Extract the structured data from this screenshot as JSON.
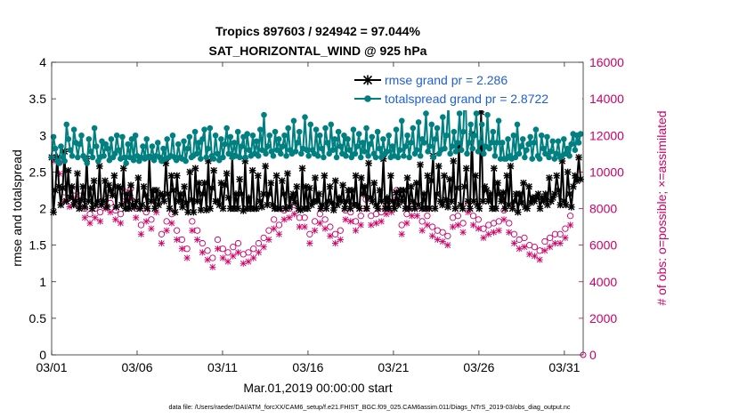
{
  "chart_data": {
    "type": "line",
    "title": "Tropics 897603 / 924942 = 97.044%",
    "subtitle": "SAT_HORIZONTAL_WIND @ 925 hPa",
    "xlabel": "Mar.01,2019 00:00:00 start",
    "ylabel": "rmse and totalspread",
    "y2label": "# of obs: o=possible; ×=assimilated",
    "footnote": "data file: /Users/raeder/DAI/ATM_forcXX/CAM6_setup/f.e21.FHIST_BGC.f09_025.CAM6assim.011/Diags_NTrS_2019-03/obs_diag_output.nc",
    "xlim": [
      0,
      31.1
    ],
    "ylim": [
      0,
      4
    ],
    "y2lim": [
      0,
      16000
    ],
    "x_ticks": [
      0,
      5,
      10,
      15,
      20,
      25,
      30
    ],
    "x_tick_labels": [
      "03/01",
      "03/06",
      "03/11",
      "03/16",
      "03/21",
      "03/26",
      "03/31"
    ],
    "y_ticks": [
      "0",
      "0.5",
      "1",
      "1.5",
      "2",
      "2.5",
      "3",
      "3.5",
      "4"
    ],
    "y2_ticks": [
      "0",
      "2000",
      "4000",
      "6000",
      "8000",
      "10000",
      "12000",
      "14000",
      "16000"
    ],
    "legend_location": "top-right",
    "series": [
      {
        "name": "rmse grand pr = 2.286",
        "color": "#000000",
        "marker": "asterisk",
        "axis": "left",
        "values": [
          2.7,
          1.95,
          2.25,
          2.7,
          2.3,
          2.05,
          2.28,
          2.78,
          2.1,
          2.52,
          2.15,
          2.3,
          2.05,
          2.1,
          2.48,
          2.0,
          2.12,
          2.3,
          2.02,
          2.68,
          2.1,
          2.28,
          2.0,
          2.38,
          2.05,
          2.1,
          2.58,
          2.05,
          2.1,
          2.38,
          2.02,
          2.32,
          2.25,
          2.18,
          2.45,
          2.02,
          2.3,
          2.28,
          2.05,
          2.55,
          2.0,
          2.2,
          2.0,
          2.32,
          2.05,
          2.02,
          2.1,
          2.42,
          2.0,
          2.05,
          2.3,
          2.18,
          2.0,
          2.7,
          2.1,
          2.25,
          2.0,
          2.25,
          2.05,
          2.2,
          2.18,
          2.1,
          2.62,
          2.2,
          2.0,
          2.45,
          2.25,
          1.95,
          2.45,
          2.1,
          2.2,
          2.02,
          2.3,
          2.08,
          1.95,
          2.5,
          2.12,
          1.95,
          2.55,
          2.1,
          2.35,
          1.98,
          2.2,
          2.35,
          1.98,
          2.65,
          2.0,
          2.28,
          2.52,
          2.1,
          2.1,
          2.05,
          2.35,
          2.0,
          2.32,
          2.48,
          2.15,
          2.0,
          2.72,
          2.0,
          2.2,
          2.0,
          2.4,
          2.2,
          1.97,
          2.65,
          2.0,
          2.15,
          2.0,
          2.52,
          2.0,
          2.0,
          2.45,
          2.1,
          2.02,
          2.2,
          2.58,
          2.05,
          2.2,
          2.35,
          2.05,
          2.0,
          2.45,
          2.0,
          2.0,
          2.38,
          2.2,
          2.0,
          2.48,
          2.02,
          2.15,
          2.2,
          2.08,
          2.3,
          2.0,
          1.98,
          2.55,
          2.0,
          2.3,
          2.0,
          2.28,
          2.05,
          2.1,
          2.42,
          2.1,
          2.2,
          2.0,
          2.05,
          2.45,
          2.0,
          2.1,
          2.3,
          2.08,
          1.98,
          2.38,
          2.05,
          2.15,
          2.1,
          2.32,
          2.0,
          2.1,
          2.25,
          2.0,
          2.25,
          2.05,
          2.45,
          2.05,
          2.0,
          2.42,
          2.2,
          2.3,
          2.0,
          2.62,
          2.15,
          2.1,
          2.35,
          2.05,
          2.0,
          2.25,
          2.1,
          2.68,
          2.0,
          2.15,
          2.0,
          2.45,
          2.1,
          2.0,
          2.22,
          2.05,
          2.25,
          2.1,
          2.25,
          2.0,
          2.42,
          2.0,
          2.3,
          2.1,
          2.0,
          2.35,
          2.05,
          2.6,
          2.0,
          2.2,
          2.0,
          2.45,
          2.0,
          2.38,
          2.72,
          2.0,
          2.2,
          2.58,
          2.1,
          2.05,
          2.45,
          2.12,
          2.02,
          2.4,
          2.1,
          2.65,
          2.0,
          2.28,
          2.85,
          2.05,
          2.0,
          2.3,
          2.55,
          2.1,
          2.0,
          3.02,
          2.1,
          2.45,
          2.05,
          2.0,
          3.32,
          2.1,
          2.3,
          2.25,
          2.1,
          2.2,
          2.0,
          2.55,
          2.0,
          2.35,
          2.2,
          2.1,
          2.22,
          2.0,
          2.45,
          2.05,
          2.58,
          2.0,
          2.1,
          2.2,
          1.95,
          2.2,
          2.08,
          2.35,
          2.02,
          2.0,
          2.3,
          2.08,
          2.15,
          2.1,
          2.15,
          2.2,
          2.0,
          2.15,
          2.1,
          2.2,
          2.05,
          2.42,
          2.1,
          2.15,
          2.2,
          2.45,
          2.25,
          2.05,
          2.65,
          2.1,
          2.05,
          2.5,
          2.2,
          2.02,
          2.3,
          2.45,
          2.38,
          2.7,
          2.4
        ]
      },
      {
        "name": "totalspread grand pr = 2.8722",
        "color": "#008080",
        "marker": "dot",
        "axis": "left",
        "values": [
          2.7,
          2.98,
          2.82,
          2.65,
          2.62,
          2.85,
          2.7,
          2.65,
          3.15,
          2.95,
          2.8,
          2.72,
          3.08,
          2.9,
          2.7,
          2.88,
          3.0,
          2.72,
          2.68,
          2.62,
          2.95,
          2.78,
          2.7,
          3.1,
          2.85,
          2.65,
          2.7,
          2.92,
          2.72,
          2.88,
          2.82,
          2.66,
          2.95,
          2.7,
          2.75,
          3.0,
          2.8,
          2.68,
          2.98,
          2.7,
          2.62,
          2.88,
          2.7,
          2.95,
          2.66,
          3.0,
          2.72,
          2.65,
          2.7,
          2.85,
          2.68,
          2.95,
          2.7,
          2.7,
          2.85,
          2.66,
          2.72,
          2.9,
          2.7,
          2.65,
          2.82,
          2.68,
          2.95,
          2.7,
          2.72,
          3.0,
          2.7,
          2.66,
          2.88,
          2.7,
          2.68,
          2.92,
          2.65,
          2.82,
          2.98,
          2.7,
          2.72,
          3.05,
          2.75,
          2.9,
          2.68,
          2.95,
          3.08,
          2.7,
          2.82,
          3.1,
          2.72,
          2.68,
          3.0,
          2.75,
          2.66,
          2.95,
          2.7,
          2.88,
          3.1,
          2.75,
          2.98,
          2.7,
          2.9,
          2.72,
          3.05,
          2.7,
          2.85,
          2.98,
          2.7,
          3.02,
          2.8,
          2.72,
          3.0,
          2.75,
          2.92,
          2.72,
          3.08,
          2.8,
          3.28,
          2.75,
          2.85,
          3.0,
          2.78,
          2.72,
          3.05,
          2.8,
          2.95,
          2.75,
          2.85,
          3.0,
          2.72,
          3.1,
          2.8,
          2.75,
          3.2,
          2.78,
          2.9,
          3.05,
          2.75,
          2.82,
          3.25,
          2.8,
          2.72,
          3.15,
          2.8,
          2.75,
          3.08,
          2.72,
          3.0,
          2.82,
          2.7,
          3.1,
          2.9,
          2.75,
          3.15,
          2.8,
          2.95,
          2.7,
          3.05,
          2.85,
          2.75,
          3.0,
          2.72,
          2.95,
          2.8,
          2.7,
          3.08,
          2.75,
          2.85,
          3.02,
          2.7,
          2.9,
          2.78,
          3.1,
          2.72,
          2.88,
          2.98,
          2.75,
          2.7,
          3.05,
          2.82,
          2.7,
          2.95,
          2.75,
          2.78,
          3.0,
          2.7,
          2.85,
          2.72,
          3.08,
          2.7,
          2.8,
          3.2,
          2.72,
          2.85,
          3.0,
          2.7,
          2.9,
          3.1,
          2.75,
          2.8,
          3.18,
          2.72,
          2.95,
          2.9,
          3.3,
          2.78,
          2.85,
          3.15,
          2.7,
          2.95,
          3.1,
          2.75,
          2.8,
          3.25,
          2.82,
          3.0,
          3.42,
          2.75,
          2.85,
          3.05,
          2.78,
          2.9,
          3.3,
          2.8,
          3.05,
          3.78,
          2.75,
          2.9,
          3.15,
          2.82,
          3.0,
          3.3,
          2.78,
          2.9,
          3.15,
          2.75,
          2.85,
          3.28,
          2.82,
          2.9,
          3.05,
          2.72,
          2.9,
          3.2,
          2.68,
          2.9,
          2.68,
          2.68,
          2.95,
          2.72,
          2.68,
          3.0,
          2.7,
          3.15,
          2.75,
          2.85,
          2.95,
          2.7,
          2.8,
          2.88,
          2.98,
          2.68,
          2.9,
          3.08,
          2.72,
          2.68,
          3.0,
          2.82,
          2.75,
          2.98,
          2.7,
          2.78,
          2.92,
          2.68,
          2.75,
          2.92,
          2.7,
          2.72,
          2.95,
          2.75,
          2.82,
          2.72,
          2.88,
          3.02,
          2.8,
          3.0,
          2.9,
          3.02
        ]
      },
      {
        "name": "obs possible",
        "color": "#cc0066",
        "marker": "circle",
        "axis": "right",
        "values": [
          11000,
          10500,
          8900,
          8600,
          9000,
          8700,
          8000,
          7700,
          8000,
          7800,
          8500,
          8300,
          7900,
          7700,
          8900,
          9100,
          8000,
          7100,
          7800,
          7400,
          8300,
          6600,
          7300,
          7700,
          6800,
          6300,
          5800,
          7300,
          6800,
          6100,
          5700,
          5300,
          6300,
          5800,
          5600,
          5900,
          6100,
          5500,
          5600,
          5800,
          6100,
          6400,
          6800,
          7400,
          7100,
          7900,
          8000,
          8200,
          7500,
          7500,
          6600,
          7300,
          7700,
          7400,
          7000,
          6600,
          6800,
          7900,
          7800,
          7300,
          7600,
          8500,
          7600,
          7700,
          7800,
          8200,
          8300,
          9000,
          7100,
          7700,
          8100,
          8100,
          7300,
          7600,
          7000,
          6800,
          6700,
          6500,
          7500,
          7600,
          7200,
          8300,
          7600,
          7400,
          6900,
          7100,
          7200,
          7300,
          7900,
          7200,
          6600,
          6300,
          6400,
          6000,
          5900,
          5700,
          6200,
          6400,
          6600,
          6600,
          6900,
          7600
        ]
      },
      {
        "name": "obs assimilated",
        "color": "#cc0066",
        "marker": "times",
        "axis": "right",
        "values": [
          10600,
          9900,
          8400,
          8100,
          8500,
          8200,
          7500,
          7200,
          7500,
          7300,
          8000,
          7800,
          7400,
          7200,
          8400,
          8600,
          7500,
          6600,
          7300,
          6900,
          7800,
          6100,
          6800,
          7200,
          6300,
          5800,
          5300,
          6800,
          6300,
          5600,
          5200,
          4800,
          5800,
          5300,
          5100,
          5400,
          5600,
          5000,
          5100,
          5300,
          5600,
          5900,
          6300,
          6900,
          6600,
          7400,
          7500,
          7700,
          7000,
          7000,
          6100,
          6800,
          7200,
          6900,
          6500,
          6100,
          6300,
          7400,
          7300,
          6800,
          7100,
          8000,
          7100,
          7200,
          7300,
          7700,
          7800,
          8500,
          6600,
          7200,
          7600,
          7600,
          6800,
          7100,
          6500,
          6300,
          6200,
          6000,
          7000,
          7100,
          6700,
          7800,
          7100,
          6900,
          6400,
          6600,
          6700,
          6800,
          7400,
          6700,
          6100,
          5800,
          5900,
          5500,
          5400,
          5200,
          5700,
          5900,
          6100,
          6100,
          6400,
          7100
        ]
      }
    ]
  }
}
